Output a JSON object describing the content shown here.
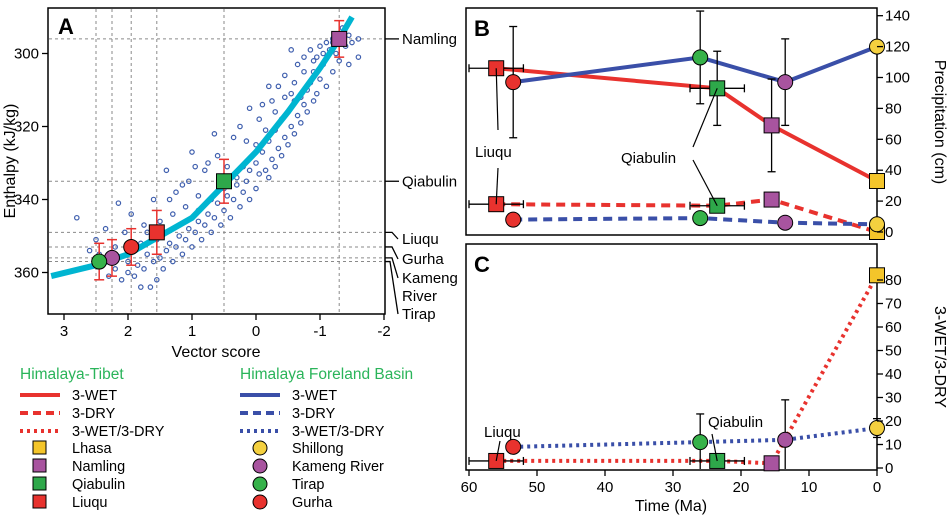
{
  "colors": {
    "red": "#e8322e",
    "blue": "#3a4fa8",
    "cyan": "#00b5d1",
    "scatter": "#3f5fae",
    "errorRed": "#e8322e",
    "legendHead": "#2ab45a",
    "lhasa": "#f4c52a",
    "namling": "#a8549f",
    "qiabulin": "#2ea84a",
    "liuqu": "#e8322e",
    "shillong": "#f4d03f",
    "kameng": "#a8549f",
    "tirap": "#36b24a",
    "gurha": "#e8322e"
  },
  "chart_data": [
    {
      "panel_label": "A",
      "type": "scatter",
      "xlabel": "Vector score",
      "ylabel": "Enthalpy (kJ/kg)",
      "xlim": [
        3,
        -2
      ],
      "ylim": [
        365,
        290
      ],
      "xticks": [
        3,
        2,
        1,
        0,
        -1,
        -2
      ],
      "yticks": [
        300,
        320,
        340,
        360
      ],
      "fit_curve": [
        [
          3.2,
          361
        ],
        [
          2.5,
          358
        ],
        [
          2.0,
          355
        ],
        [
          1.5,
          350
        ],
        [
          1.0,
          345
        ],
        [
          0.5,
          336
        ],
        [
          0.0,
          327
        ],
        [
          -0.5,
          316
        ],
        [
          -1.0,
          304
        ],
        [
          -1.3,
          296
        ],
        [
          -1.5,
          290
        ]
      ],
      "scatter_points": [
        [
          -1.2,
          296
        ],
        [
          -1.35,
          293
        ],
        [
          -1.45,
          295
        ],
        [
          -1.1,
          297
        ],
        [
          -1.0,
          298
        ],
        [
          -1.25,
          300
        ],
        [
          -1.4,
          298
        ],
        [
          -1.3,
          302
        ],
        [
          -1.15,
          299
        ],
        [
          -0.95,
          301
        ],
        [
          -1.05,
          303
        ],
        [
          -1.2,
          305
        ],
        [
          -0.9,
          305
        ],
        [
          -1.0,
          307
        ],
        [
          -0.85,
          308
        ],
        [
          -1.1,
          309
        ],
        [
          -0.8,
          310
        ],
        [
          -0.95,
          311
        ],
        [
          -0.7,
          312
        ],
        [
          -0.9,
          313
        ],
        [
          -0.75,
          314
        ],
        [
          -0.6,
          313
        ],
        [
          -0.8,
          316
        ],
        [
          -0.65,
          317
        ],
        [
          -0.5,
          316
        ],
        [
          -0.7,
          319
        ],
        [
          -0.55,
          320
        ],
        [
          -0.4,
          318
        ],
        [
          -0.6,
          322
        ],
        [
          -0.45,
          323
        ],
        [
          -0.3,
          321
        ],
        [
          -0.5,
          325
        ],
        [
          -0.35,
          326
        ],
        [
          -0.2,
          324
        ],
        [
          -0.4,
          328
        ],
        [
          -0.25,
          329
        ],
        [
          -0.1,
          327
        ],
        [
          -0.3,
          331
        ],
        [
          -0.15,
          332
        ],
        [
          0.0,
          330
        ],
        [
          -0.2,
          334
        ],
        [
          -0.05,
          333
        ],
        [
          0.1,
          332
        ],
        [
          0.15,
          335
        ],
        [
          0.0,
          337
        ],
        [
          0.2,
          338
        ],
        [
          0.3,
          336
        ],
        [
          0.1,
          340
        ],
        [
          0.35,
          340
        ],
        [
          0.45,
          339
        ],
        [
          0.25,
          342
        ],
        [
          0.5,
          343
        ],
        [
          0.6,
          341
        ],
        [
          0.4,
          345
        ],
        [
          0.65,
          345
        ],
        [
          0.75,
          344
        ],
        [
          0.55,
          347
        ],
        [
          0.8,
          347
        ],
        [
          0.9,
          346
        ],
        [
          0.7,
          349
        ],
        [
          0.95,
          349
        ],
        [
          1.05,
          348
        ],
        [
          0.85,
          351
        ],
        [
          1.1,
          351
        ],
        [
          1.2,
          350
        ],
        [
          1.0,
          353
        ],
        [
          1.25,
          353
        ],
        [
          1.35,
          352
        ],
        [
          1.15,
          355
        ],
        [
          1.4,
          354
        ],
        [
          1.5,
          356
        ],
        [
          1.3,
          357
        ],
        [
          1.6,
          357
        ],
        [
          1.7,
          355
        ],
        [
          1.45,
          359
        ],
        [
          1.75,
          359
        ],
        [
          1.85,
          358
        ],
        [
          1.55,
          362
        ],
        [
          1.9,
          361
        ],
        [
          2.0,
          360
        ],
        [
          1.65,
          364
        ],
        [
          1.8,
          364
        ],
        [
          2.1,
          362
        ],
        [
          2.2,
          359
        ],
        [
          2.3,
          361
        ],
        [
          2.0,
          357
        ],
        [
          2.4,
          357
        ],
        [
          1.9,
          352
        ],
        [
          2.2,
          353
        ],
        [
          1.7,
          349
        ],
        [
          1.5,
          346
        ],
        [
          1.3,
          344
        ],
        [
          1.1,
          342
        ],
        [
          0.9,
          343
        ],
        [
          0.7,
          340
        ],
        [
          0.5,
          337
        ],
        [
          0.3,
          334
        ],
        [
          0.2,
          331
        ],
        [
          0.0,
          325
        ],
        [
          -0.15,
          321
        ],
        [
          -0.3,
          316
        ],
        [
          -0.45,
          312
        ],
        [
          -0.6,
          308
        ],
        [
          -0.75,
          305
        ],
        [
          -0.9,
          302
        ],
        [
          -1.05,
          300
        ],
        [
          -1.2,
          297
        ],
        [
          -1.5,
          297
        ],
        [
          -1.6,
          296
        ],
        [
          1.2,
          347
        ],
        [
          1.55,
          351
        ],
        [
          0.9,
          339
        ],
        [
          1.8,
          352
        ],
        [
          2.5,
          351
        ],
        [
          2.8,
          345
        ],
        [
          1.4,
          332
        ],
        [
          1.0,
          327
        ],
        [
          0.8,
          332
        ],
        [
          0.45,
          331
        ],
        [
          0.35,
          323
        ],
        [
          0.6,
          328
        ],
        [
          1.05,
          335
        ],
        [
          -0.05,
          318
        ],
        [
          -0.25,
          313
        ],
        [
          -0.55,
          311
        ],
        [
          -0.65,
          303
        ],
        [
          -0.85,
          299
        ],
        [
          -0.45,
          306
        ],
        [
          -0.2,
          309
        ],
        [
          0.1,
          315
        ],
        [
          0.25,
          320
        ],
        [
          1.6,
          340
        ],
        [
          1.95,
          344
        ],
        [
          2.15,
          341
        ],
        [
          2.35,
          348
        ],
        [
          1.25,
          338
        ],
        [
          0.15,
          324
        ],
        [
          -0.1,
          314
        ],
        [
          -0.35,
          309
        ],
        [
          -0.75,
          301
        ],
        [
          -0.55,
          299
        ],
        [
          -1.45,
          303
        ],
        [
          -1.6,
          301
        ],
        [
          0.55,
          334
        ],
        [
          0.75,
          330
        ],
        [
          1.15,
          336
        ],
        [
          1.35,
          340
        ],
        [
          0.95,
          331
        ],
        [
          0.65,
          322
        ],
        [
          2.6,
          354
        ],
        [
          2.45,
          355
        ],
        [
          1.75,
          347
        ],
        [
          2.05,
          349
        ]
      ],
      "sites": [
        {
          "name": "Namling",
          "x": -1.3,
          "y": 296,
          "yerr": 5,
          "color": "#a8549f",
          "shape": "square"
        },
        {
          "name": "Qiabulin",
          "x": 0.5,
          "y": 335,
          "yerr": 6,
          "color": "#2ea84a",
          "shape": "square"
        },
        {
          "name": "Liuqu",
          "x": 1.55,
          "y": 349,
          "yerr": 6,
          "color": "#e8322e",
          "shape": "square"
        },
        {
          "name": "Gurha",
          "x": 1.95,
          "y": 353,
          "yerr": 5,
          "color": "#e8322e",
          "shape": "circle"
        },
        {
          "name": "Kameng River",
          "x": 2.25,
          "y": 356,
          "yerr": 5,
          "color": "#a8549f",
          "shape": "circle"
        },
        {
          "name": "Tirap",
          "x": 2.45,
          "y": 357,
          "yerr": 5,
          "color": "#36b24a",
          "shape": "circle"
        }
      ],
      "guide_lines": {
        "vertical": [
          2.5,
          2.25,
          1.95,
          1.55,
          0.5,
          -1.3
        ],
        "horizontal": [
          296,
          335,
          349,
          353,
          356,
          357
        ]
      },
      "right_labels": [
        "Namling",
        "Qiabulin",
        "Liuqu",
        "Gurha",
        "Kameng",
        "River",
        "Tirap"
      ]
    },
    {
      "panel_label": "B",
      "type": "line",
      "xlabel": "",
      "ylabel": "Precipitation (cm)",
      "xlim": [
        60,
        0
      ],
      "ylim": [
        0,
        140
      ],
      "yticks": [
        0,
        20,
        40,
        60,
        80,
        100,
        120,
        140
      ],
      "series": [
        {
          "name": "Himalaya-Tibet 3-WET",
          "style": "solid",
          "color": "#e8322e",
          "points": [
            {
              "x": 56,
              "y": 106,
              "marker": "square",
              "color": "#e8322e",
              "xerr": 4,
              "yerr": 0
            },
            {
              "x": 23.5,
              "y": 93,
              "marker": "square",
              "color": "#2ea84a",
              "xerr": 4,
              "yerr": 24
            },
            {
              "x": 15.5,
              "y": 69,
              "marker": "square",
              "color": "#a8549f",
              "xerr": 0,
              "yerr": 30
            },
            {
              "x": 0,
              "y": 33,
              "marker": "square",
              "color": "#f4c52a",
              "xerr": 0,
              "yerr": 0
            }
          ]
        },
        {
          "name": "Himalaya-Tibet 3-DRY",
          "style": "dashed",
          "color": "#e8322e",
          "points": [
            {
              "x": 56,
              "y": 18,
              "marker": "square",
              "color": "#e8322e",
              "xerr": 4,
              "yerr": 0
            },
            {
              "x": 23.5,
              "y": 17,
              "marker": "square",
              "color": "#2ea84a",
              "xerr": 4,
              "yerr": 0
            },
            {
              "x": 15.5,
              "y": 21,
              "marker": "square",
              "color": "#a8549f",
              "xerr": 0,
              "yerr": 2
            },
            {
              "x": 0,
              "y": 0,
              "marker": "square",
              "color": "#f4c52a",
              "xerr": 0,
              "yerr": 0
            }
          ]
        },
        {
          "name": "Foreland Basin 3-WET",
          "style": "solid",
          "color": "#3a4fa8",
          "points": [
            {
              "x": 53.5,
              "y": 97,
              "marker": "circle",
              "color": "#e8322e",
              "xerr": 0,
              "yerr": 36
            },
            {
              "x": 26,
              "y": 113,
              "marker": "circle",
              "color": "#36b24a",
              "xerr": 0,
              "yerr": 30
            },
            {
              "x": 13.5,
              "y": 97,
              "marker": "circle",
              "color": "#a8549f",
              "xerr": 0,
              "yerr": 28
            },
            {
              "x": 0,
              "y": 120,
              "marker": "circle",
              "color": "#f4d03f",
              "xerr": 0,
              "yerr": 0
            }
          ]
        },
        {
          "name": "Foreland Basin 3-DRY",
          "style": "dashed",
          "color": "#3a4fa8",
          "points": [
            {
              "x": 53.5,
              "y": 8,
              "marker": "circle",
              "color": "#e8322e",
              "xerr": 0,
              "yerr": 0
            },
            {
              "x": 26,
              "y": 9,
              "marker": "circle",
              "color": "#36b24a",
              "xerr": 0,
              "yerr": 0
            },
            {
              "x": 13.5,
              "y": 6,
              "marker": "circle",
              "color": "#a8549f",
              "xerr": 0,
              "yerr": 0
            },
            {
              "x": 0,
              "y": 5,
              "marker": "circle",
              "color": "#f4d03f",
              "xerr": 0,
              "yerr": 0
            }
          ]
        }
      ],
      "annotations": [
        "Liuqu",
        "Qiabulin"
      ]
    },
    {
      "panel_label": "C",
      "type": "line",
      "xlabel": "Time (Ma)",
      "ylabel": "3-WET/3-DRY",
      "xlim": [
        60,
        0
      ],
      "ylim": [
        0,
        85
      ],
      "xticks": [
        60,
        50,
        40,
        30,
        20,
        10,
        0
      ],
      "yticks": [
        0,
        10,
        20,
        30,
        40,
        50,
        60,
        70,
        80
      ],
      "series": [
        {
          "name": "Himalaya-Tibet 3-WET/3-DRY",
          "style": "dotted",
          "color": "#e8322e",
          "points": [
            {
              "x": 56,
              "y": 3,
              "marker": "square",
              "color": "#e8322e",
              "xerr": 4,
              "yerr": 0
            },
            {
              "x": 23.5,
              "y": 3,
              "marker": "square",
              "color": "#2ea84a",
              "xerr": 4,
              "yerr": 0
            },
            {
              "x": 15.5,
              "y": 2,
              "marker": "square",
              "color": "#a8549f",
              "xerr": 0,
              "yerr": 0
            },
            {
              "x": 0,
              "y": 82,
              "marker": "square",
              "color": "#f4c52a",
              "xerr": 0,
              "yerr": 3
            }
          ]
        },
        {
          "name": "Foreland Basin 3-WET/3-DRY",
          "style": "dotted",
          "color": "#3a4fa8",
          "points": [
            {
              "x": 53.5,
              "y": 9,
              "marker": "circle",
              "color": "#e8322e",
              "xerr": 0,
              "yerr": 0
            },
            {
              "x": 26,
              "y": 11,
              "marker": "circle",
              "color": "#36b24a",
              "xerr": 0,
              "yerr": 12
            },
            {
              "x": 13.5,
              "y": 12,
              "marker": "circle",
              "color": "#a8549f",
              "xerr": 0,
              "yerr": 17
            },
            {
              "x": 0,
              "y": 17,
              "marker": "circle",
              "color": "#f4d03f",
              "xerr": 0,
              "yerr": 4
            }
          ]
        }
      ],
      "annotations": [
        "Liuqu",
        "Qiabulin"
      ]
    }
  ],
  "legend": {
    "left_header": "Himalaya-Tibet",
    "right_header": "Himalaya Foreland Basin",
    "line_items": [
      "3-WET",
      "3-DRY",
      "3-WET/3-DRY"
    ],
    "left_sites": [
      "Lhasa",
      "Namling",
      "Qiabulin",
      "Liuqu"
    ],
    "right_sites": [
      "Shillong",
      "Kameng River",
      "Tirap",
      "Gurha"
    ]
  }
}
